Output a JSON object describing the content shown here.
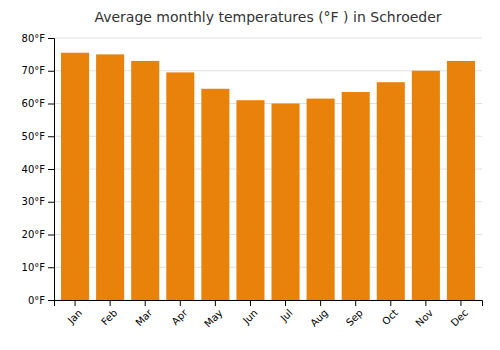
{
  "chart_data": {
    "type": "bar",
    "title": "Average monthly temperatures (°F ) in Schroeder",
    "categories": [
      "Jan",
      "Feb",
      "Mar",
      "Apr",
      "May",
      "Jun",
      "Jul",
      "Aug",
      "Sep",
      "Oct",
      "Nov",
      "Dec"
    ],
    "values": [
      75.5,
      75.0,
      73.0,
      69.5,
      64.5,
      61.0,
      60.0,
      61.5,
      63.5,
      66.5,
      70.0,
      73.0
    ],
    "color": "#E8820A",
    "ylim": [
      0,
      80
    ],
    "yticks": [
      {
        "value": 0,
        "label": "0°F"
      },
      {
        "value": 10,
        "label": "10°F"
      },
      {
        "value": 20,
        "label": "20°F"
      },
      {
        "value": 30,
        "label": "30°F"
      },
      {
        "value": 40,
        "label": "40°F"
      },
      {
        "value": 50,
        "label": "50°F"
      },
      {
        "value": 60,
        "label": "60°F"
      },
      {
        "value": 70,
        "label": "70°F"
      },
      {
        "value": 80,
        "label": "80°F"
      }
    ],
    "grid": true
  }
}
